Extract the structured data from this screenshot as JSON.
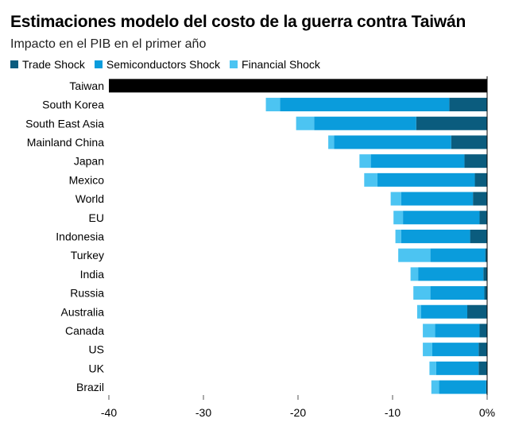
{
  "title": "Estimaciones modelo del costo de la guerra contra Taiwán",
  "subtitle": "Impacto en el PIB en el primer año",
  "legend": [
    {
      "name": "Trade Shock",
      "color": "#0b5c7e"
    },
    {
      "name": "Semiconductors Shock",
      "color": "#0a9cdc"
    },
    {
      "name": "Financial Shock",
      "color": "#4cc4f2"
    }
  ],
  "chart_data": {
    "type": "bar",
    "orientation": "horizontal",
    "stacked": true,
    "categories": [
      "Taiwan",
      "South Korea",
      "South East Asia",
      "Mainland China",
      "Japan",
      "Mexico",
      "World",
      "EU",
      "Indonesia",
      "Turkey",
      "India",
      "Russia",
      "Australia",
      "Canada",
      "US",
      "UK",
      "Brazil"
    ],
    "highlight": {
      "category": "Taiwan",
      "total": -40,
      "color": "#000000"
    },
    "series": [
      {
        "name": "Trade Shock",
        "color": "#0b5c7e",
        "values": [
          null,
          -4.0,
          -7.5,
          -3.8,
          -2.4,
          -1.3,
          -1.5,
          -0.8,
          -1.8,
          -0.2,
          -0.4,
          -0.3,
          -2.1,
          -0.8,
          -0.9,
          -0.9,
          -0.1
        ]
      },
      {
        "name": "Semiconductors Shock",
        "color": "#0a9cdc",
        "values": [
          null,
          -17.9,
          -10.8,
          -12.4,
          -9.9,
          -10.3,
          -7.6,
          -8.1,
          -7.3,
          -5.8,
          -6.9,
          -5.7,
          -4.9,
          -4.7,
          -4.9,
          -4.5,
          -5.0
        ]
      },
      {
        "name": "Financial Shock",
        "color": "#4cc4f2",
        "values": [
          null,
          -1.5,
          -1.9,
          -0.6,
          -1.2,
          -1.4,
          -1.1,
          -1.0,
          -0.6,
          -3.4,
          -0.8,
          -1.8,
          -0.4,
          -1.3,
          -1.0,
          -0.7,
          -0.8
        ]
      }
    ],
    "xlim": [
      -40,
      0
    ],
    "xticks": [
      "-40",
      "-30",
      "-20",
      "-10",
      "0%"
    ],
    "xtick_values": [
      -40,
      -30,
      -20,
      -10,
      0
    ]
  }
}
